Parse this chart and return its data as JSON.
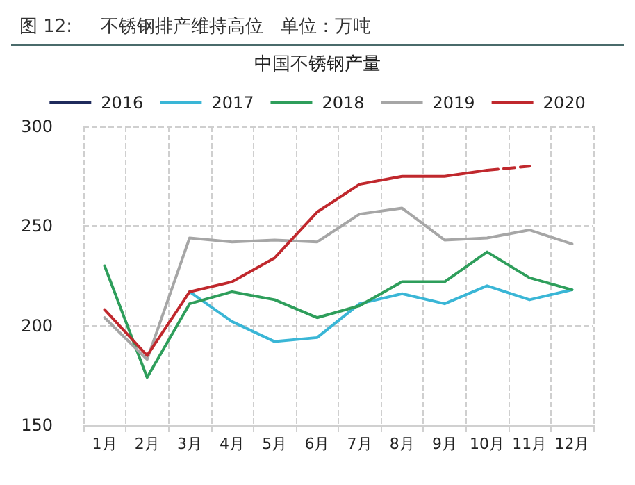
{
  "chart_data": {
    "type": "line",
    "title": "图 12:     不锈钢排产维持高位   单位：万吨",
    "subtitle": "中国不锈钢产量",
    "categories": [
      "1月",
      "2月",
      "3月",
      "4月",
      "5月",
      "6月",
      "7月",
      "8月",
      "9月",
      "10月",
      "11月",
      "12月"
    ],
    "series": [
      {
        "name": "2016",
        "color": "#1f2a5c",
        "values": [
          null,
          null,
          null,
          null,
          null,
          null,
          null,
          null,
          null,
          null,
          null,
          null
        ]
      },
      {
        "name": "2017",
        "color": "#3ab6d6",
        "values": [
          null,
          null,
          217,
          202,
          192,
          194,
          211,
          216,
          211,
          220,
          213,
          218
        ]
      },
      {
        "name": "2018",
        "color": "#2e9e5b",
        "values": [
          230,
          174,
          211,
          217,
          213,
          204,
          210,
          222,
          222,
          237,
          224,
          218
        ]
      },
      {
        "name": "2019",
        "color": "#a6a6a6",
        "values": [
          204,
          183,
          244,
          242,
          243,
          242,
          256,
          259,
          243,
          244,
          248,
          241
        ]
      },
      {
        "name": "2020",
        "color": "#c0282d",
        "values": [
          208,
          185,
          217,
          222,
          234,
          257,
          271,
          275,
          275,
          278,
          null,
          null
        ]
      },
      {
        "color": "#c0282d",
        "line_style": "dashed",
        "values": [
          null,
          null,
          null,
          null,
          null,
          null,
          null,
          null,
          null,
          278,
          280,
          null
        ]
      }
    ],
    "ylim": [
      150,
      300
    ],
    "yticks": [
      150,
      200,
      250,
      300
    ],
    "grid": true,
    "legend": "top",
    "marker": "none",
    "line_style": "solid"
  }
}
